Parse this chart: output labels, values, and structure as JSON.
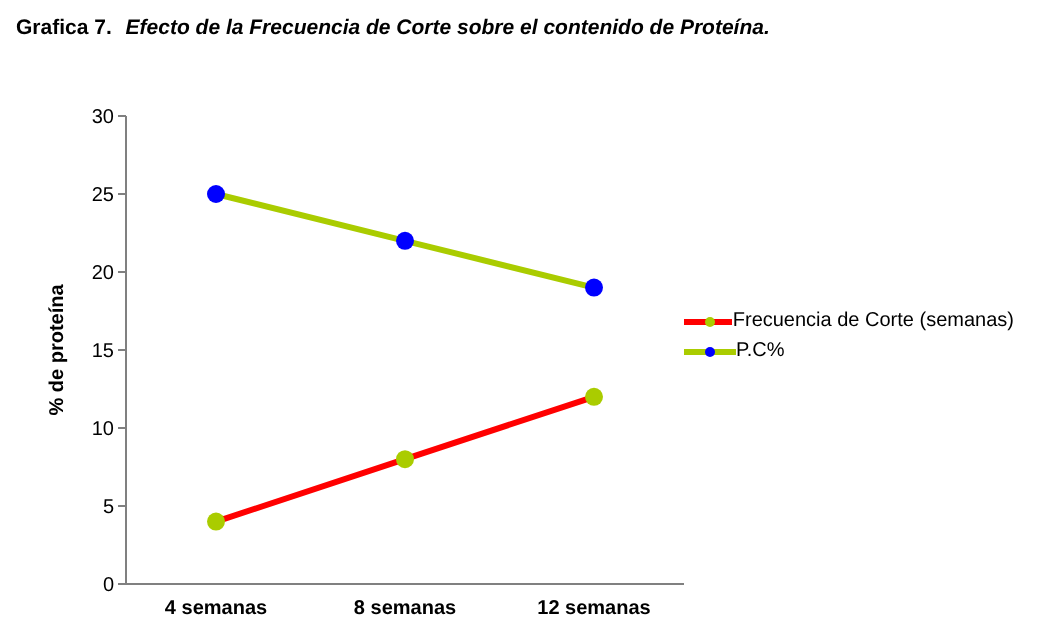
{
  "chart_data": {
    "type": "line",
    "title": "Grafica 7. Efecto de la Frecuencia de Corte sobre el contenido de Proteína.",
    "ylabel": "% de proteína",
    "categories": [
      "4 semanas",
      "8 semanas",
      "12 semanas"
    ],
    "series": [
      {
        "name": "Frecuencia de Corte (semanas)",
        "color": "#ff0000",
        "colors": [
          "#aacc00",
          "#aacc00",
          "#aacc00"
        ],
        "values": [
          4,
          8,
          12
        ]
      },
      {
        "name": "P.C%",
        "color": "#aacc00",
        "colors": [
          "#0000ff",
          "#0000ff",
          "#0000ff"
        ],
        "values": [
          25,
          22,
          19
        ]
      }
    ],
    "ylim": [
      0,
      30
    ],
    "yticks": [
      0,
      5,
      10,
      15,
      20,
      25,
      30
    ],
    "grid": false,
    "legend": "right",
    "marker": "circle",
    "line_style": "solid"
  }
}
